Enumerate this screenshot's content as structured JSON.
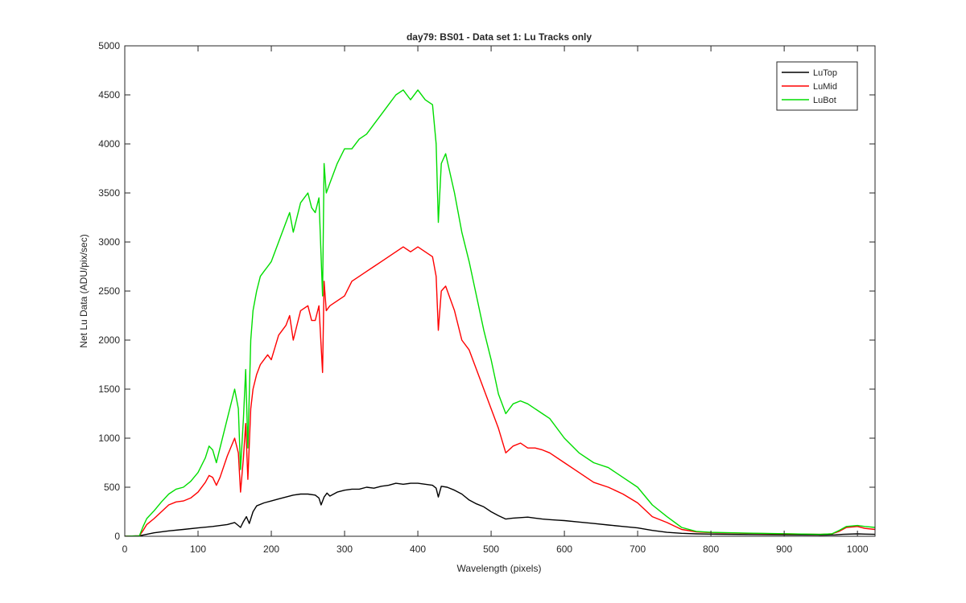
{
  "chart_data": {
    "type": "line",
    "title": "day79: BS01 - Data set 1: Lu Tracks only",
    "xlabel": "Wavelength (pixels)",
    "ylabel": "Net Lu Data (ADU/pix/sec)",
    "xlim": [
      0,
      1024
    ],
    "ylim": [
      0,
      5000
    ],
    "xticks": [
      0,
      100,
      200,
      300,
      400,
      500,
      600,
      700,
      800,
      900,
      1000
    ],
    "yticks": [
      0,
      500,
      1000,
      1500,
      2000,
      2500,
      3000,
      3500,
      4000,
      4500,
      5000
    ],
    "grid": false,
    "legend_position": "top-right",
    "series": [
      {
        "name": "LuTop",
        "color": "#000000",
        "x": [
          0,
          20,
          30,
          40,
          60,
          80,
          100,
          120,
          140,
          150,
          158,
          162,
          166,
          170,
          175,
          180,
          190,
          200,
          210,
          220,
          230,
          240,
          250,
          260,
          265,
          268,
          272,
          276,
          280,
          290,
          300,
          310,
          320,
          330,
          340,
          350,
          360,
          370,
          380,
          390,
          400,
          410,
          420,
          425,
          428,
          432,
          440,
          450,
          460,
          470,
          480,
          490,
          500,
          510,
          520,
          530,
          540,
          550,
          560,
          570,
          580,
          590,
          600,
          620,
          640,
          660,
          680,
          700,
          720,
          740,
          760,
          780,
          800,
          850,
          900,
          950,
          970,
          980,
          1000,
          1010,
          1024
        ],
        "y": [
          0,
          5,
          20,
          35,
          55,
          70,
          85,
          100,
          120,
          140,
          90,
          150,
          200,
          130,
          250,
          310,
          340,
          360,
          380,
          400,
          420,
          430,
          430,
          420,
          390,
          320,
          400,
          440,
          410,
          450,
          470,
          480,
          480,
          500,
          490,
          510,
          520,
          540,
          530,
          540,
          540,
          530,
          520,
          490,
          400,
          510,
          500,
          470,
          430,
          370,
          330,
          300,
          250,
          210,
          175,
          185,
          190,
          195,
          185,
          175,
          170,
          165,
          160,
          145,
          130,
          115,
          100,
          85,
          60,
          40,
          30,
          25,
          22,
          18,
          15,
          12,
          15,
          20,
          25,
          22,
          20
        ]
      },
      {
        "name": "LuMid",
        "color": "#ff0000",
        "x": [
          0,
          20,
          25,
          30,
          40,
          50,
          60,
          70,
          80,
          90,
          100,
          110,
          115,
          120,
          125,
          130,
          140,
          150,
          155,
          158,
          162,
          165,
          168,
          172,
          175,
          180,
          185,
          190,
          195,
          200,
          210,
          220,
          225,
          230,
          240,
          250,
          255,
          260,
          265,
          270,
          272,
          275,
          280,
          290,
          300,
          310,
          320,
          330,
          340,
          350,
          360,
          370,
          380,
          390,
          400,
          410,
          420,
          425,
          428,
          432,
          438,
          450,
          460,
          470,
          480,
          490,
          500,
          510,
          520,
          530,
          540,
          550,
          560,
          570,
          580,
          600,
          620,
          640,
          660,
          680,
          700,
          720,
          740,
          760,
          780,
          800,
          850,
          900,
          950,
          965,
          975,
          985,
          1000,
          1010,
          1024
        ],
        "y": [
          0,
          5,
          60,
          120,
          180,
          250,
          320,
          350,
          360,
          390,
          450,
          550,
          620,
          600,
          520,
          600,
          820,
          1000,
          850,
          450,
          800,
          1150,
          580,
          1300,
          1500,
          1650,
          1750,
          1800,
          1850,
          1800,
          2050,
          2150,
          2250,
          2000,
          2300,
          2350,
          2200,
          2200,
          2350,
          1670,
          2600,
          2300,
          2350,
          2400,
          2450,
          2600,
          2650,
          2700,
          2750,
          2800,
          2850,
          2900,
          2950,
          2900,
          2950,
          2900,
          2850,
          2650,
          2100,
          2500,
          2550,
          2300,
          2000,
          1900,
          1700,
          1500,
          1300,
          1100,
          850,
          920,
          950,
          900,
          900,
          880,
          850,
          750,
          650,
          550,
          500,
          430,
          340,
          200,
          140,
          70,
          45,
          38,
          30,
          25,
          20,
          25,
          50,
          90,
          100,
          80,
          70
        ]
      },
      {
        "name": "LuBot",
        "color": "#00dd00",
        "x": [
          0,
          20,
          25,
          30,
          40,
          50,
          60,
          70,
          80,
          90,
          100,
          110,
          115,
          120,
          125,
          130,
          140,
          150,
          155,
          158,
          162,
          165,
          168,
          172,
          175,
          180,
          185,
          190,
          195,
          200,
          210,
          220,
          225,
          230,
          240,
          250,
          255,
          260,
          265,
          270,
          272,
          275,
          280,
          290,
          300,
          310,
          320,
          330,
          340,
          350,
          360,
          370,
          380,
          390,
          400,
          410,
          420,
          425,
          428,
          432,
          438,
          450,
          460,
          470,
          480,
          490,
          500,
          510,
          520,
          530,
          540,
          550,
          560,
          570,
          580,
          600,
          620,
          640,
          660,
          680,
          700,
          720,
          740,
          760,
          780,
          800,
          850,
          900,
          950,
          965,
          975,
          985,
          1000,
          1010,
          1024
        ],
        "y": [
          0,
          5,
          100,
          180,
          260,
          350,
          430,
          480,
          500,
          560,
          650,
          800,
          920,
          880,
          750,
          900,
          1200,
          1500,
          1300,
          680,
          1200,
          1700,
          900,
          2000,
          2300,
          2500,
          2650,
          2700,
          2750,
          2800,
          3000,
          3200,
          3300,
          3100,
          3400,
          3500,
          3350,
          3300,
          3450,
          2450,
          3800,
          3500,
          3600,
          3800,
          3950,
          3950,
          4050,
          4100,
          4200,
          4300,
          4400,
          4500,
          4550,
          4450,
          4550,
          4450,
          4400,
          4000,
          3200,
          3800,
          3900,
          3500,
          3100,
          2800,
          2450,
          2100,
          1800,
          1450,
          1250,
          1350,
          1380,
          1350,
          1300,
          1250,
          1200,
          1000,
          850,
          750,
          700,
          600,
          500,
          320,
          200,
          90,
          50,
          40,
          32,
          26,
          20,
          25,
          60,
          100,
          110,
          100,
          90
        ]
      }
    ]
  }
}
